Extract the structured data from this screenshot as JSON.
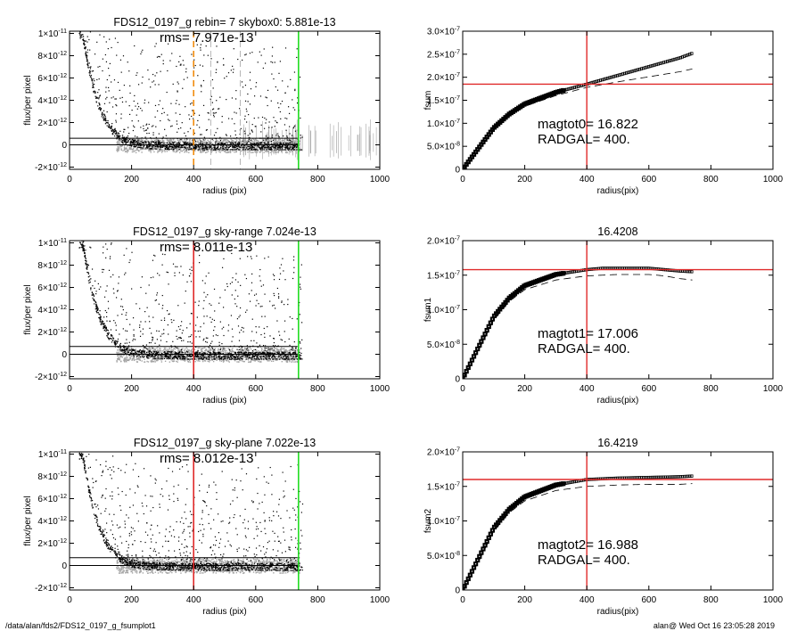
{
  "footer": {
    "left": "/data/alan/fds2/FDS12_0197_g_fsumplot1",
    "right": "alan@  Wed Oct 16 23:05:28 2019"
  },
  "colors": {
    "red": "#e02a2a",
    "green": "#22dd22",
    "orange": "#f08c10",
    "grey": "#a3a3a3"
  },
  "chart_data": [
    {
      "type": "scatter",
      "title": "FDS12_0197_g rebin= 7    skybox0:  5.881e-13",
      "annotation": "rms= 7.971e-13",
      "xlabel": "radius (pix)",
      "ylabel": "flux/per pixel",
      "xlim": [
        0,
        1000
      ],
      "ylim": [
        -2.2e-12,
        1.02e-11
      ],
      "xticks": [
        "0",
        "200",
        "400",
        "600",
        "800",
        "1000"
      ],
      "yticks": [
        "-2×10^-12",
        "0",
        "2×10^-12",
        "4×10^-12",
        "6×10^-12",
        "8×10^-12",
        "1×10^-11"
      ],
      "profile": {
        "x": [
          40,
          50,
          60,
          80,
          100,
          125,
          150,
          175,
          200,
          250,
          300,
          400,
          500,
          600,
          730
        ],
        "y": [
          1e-11,
          8.6e-12,
          7e-12,
          4.7e-12,
          3.1e-12,
          1.8e-12,
          1e-12,
          5.5e-13,
          3e-13,
          1e-13,
          5e-14,
          0,
          0,
          0,
          0
        ]
      },
      "hlines": [
        5.881e-13,
        0
      ],
      "vlines": [
        {
          "x": 400,
          "color": "orange",
          "dash": true
        },
        {
          "x": 455,
          "color": "grey",
          "dash": true
        },
        {
          "x": 550,
          "color": "grey",
          "dash": true
        },
        {
          "x": 738,
          "color": "green",
          "dash": false
        }
      ]
    },
    {
      "type": "line",
      "title": "",
      "annotation": [
        "magtot0=  16.822",
        "RADGAL=    400."
      ],
      "xlabel": "radius(pix)",
      "ylabel": "fsum",
      "xlim": [
        0,
        1000
      ],
      "ylim": [
        0,
        3e-07
      ],
      "xticks": [
        "0",
        "200",
        "400",
        "600",
        "800",
        "1000"
      ],
      "yticks": [
        "0",
        "5.0×10^-8",
        "1.0×10^-7",
        "1.5×10^-7",
        "2.0×10^-7",
        "2.5×10^-7",
        "3.0×10^-7"
      ],
      "series": [
        {
          "style": "symbols",
          "x": [
            0,
            50,
            100,
            150,
            200,
            300,
            400,
            500,
            600,
            700,
            740
          ],
          "y": [
            0,
            4.5e-08,
            9e-08,
            1.2e-07,
            1.42e-07,
            1.67e-07,
            1.85e-07,
            2.04e-07,
            2.23e-07,
            2.42e-07,
            2.52e-07
          ]
        },
        {
          "style": "dashed",
          "x": [
            0,
            50,
            100,
            150,
            200,
            300,
            400,
            500,
            600,
            700,
            740
          ],
          "y": [
            0,
            4e-08,
            8.5e-08,
            1.15e-07,
            1.37e-07,
            1.6e-07,
            1.78e-07,
            1.9e-07,
            2.01e-07,
            2.12e-07,
            2.18e-07
          ]
        }
      ],
      "crosshair": {
        "x": 400,
        "y": 1.85e-07
      }
    },
    {
      "type": "scatter",
      "title": "FDS12_0197_g sky-range  7.024e-13",
      "annotation": "rms= 8.011e-13",
      "xlabel": "radius (pix)",
      "ylabel": "flux/per pixel",
      "xlim": [
        0,
        1000
      ],
      "ylim": [
        -2.2e-12,
        1.02e-11
      ],
      "xticks": [
        "0",
        "200",
        "400",
        "600",
        "800",
        "1000"
      ],
      "yticks": [
        "-2×10^-12",
        "0",
        "2×10^-12",
        "4×10^-12",
        "6×10^-12",
        "8×10^-12",
        "1×10^-11"
      ],
      "profile": {
        "x": [
          40,
          50,
          60,
          80,
          100,
          125,
          150,
          175,
          200,
          250,
          300,
          400,
          500,
          600,
          730
        ],
        "y": [
          1e-11,
          8.6e-12,
          7e-12,
          4.7e-12,
          3.1e-12,
          1.8e-12,
          1e-12,
          5.5e-13,
          3e-13,
          1e-13,
          5e-14,
          0,
          0,
          0,
          0
        ]
      },
      "hlines": [
        7.024e-13,
        0
      ],
      "vlines": [
        {
          "x": 400,
          "color": "red",
          "dash": false
        },
        {
          "x": 738,
          "color": "green",
          "dash": false
        }
      ]
    },
    {
      "type": "line",
      "title": "16.4208",
      "annotation": [
        "magtot1=  17.006",
        "RADGAL=    400."
      ],
      "xlabel": "radius(pix)",
      "ylabel": "fsum1",
      "xlim": [
        0,
        1000
      ],
      "ylim": [
        0,
        2e-07
      ],
      "xticks": [
        "0",
        "200",
        "400",
        "600",
        "800",
        "1000"
      ],
      "yticks": [
        "0",
        "5.0×10^-8",
        "1.0×10^-7",
        "1.5×10^-7",
        "2.0×10^-7"
      ],
      "series": [
        {
          "style": "symbols",
          "x": [
            0,
            50,
            100,
            150,
            200,
            300,
            400,
            450,
            500,
            600,
            650,
            700,
            740
          ],
          "y": [
            0,
            4.5e-08,
            9e-08,
            1.17e-07,
            1.35e-07,
            1.51e-07,
            1.58e-07,
            1.6e-07,
            1.6e-07,
            1.6e-07,
            1.58e-07,
            1.56e-07,
            1.55e-07
          ]
        },
        {
          "style": "dashed",
          "x": [
            0,
            50,
            100,
            150,
            200,
            300,
            400,
            500,
            600,
            650,
            700,
            740
          ],
          "y": [
            0,
            4e-08,
            8.5e-08,
            1.12e-07,
            1.29e-07,
            1.43e-07,
            1.49e-07,
            1.51e-07,
            1.51e-07,
            1.49e-07,
            1.45e-07,
            1.43e-07
          ]
        }
      ],
      "crosshair": {
        "x": 400,
        "y": 1.58e-07
      }
    },
    {
      "type": "scatter",
      "title": "FDS12_0197_g sky-plane  7.022e-13",
      "annotation": "rms= 8.012e-13",
      "xlabel": "radius (pix)",
      "ylabel": "flux/per pixel",
      "xlim": [
        0,
        1000
      ],
      "ylim": [
        -2.2e-12,
        1.02e-11
      ],
      "xticks": [
        "0",
        "200",
        "400",
        "600",
        "800",
        "1000"
      ],
      "yticks": [
        "-2×10^-12",
        "0",
        "2×10^-12",
        "4×10^-12",
        "6×10^-12",
        "8×10^-12",
        "1×10^-11"
      ],
      "profile": {
        "x": [
          40,
          50,
          60,
          80,
          100,
          125,
          150,
          175,
          200,
          250,
          300,
          400,
          500,
          600,
          730
        ],
        "y": [
          1e-11,
          8.6e-12,
          7e-12,
          4.7e-12,
          3.1e-12,
          1.8e-12,
          1e-12,
          5.5e-13,
          3e-13,
          1e-13,
          5e-14,
          0,
          0,
          0,
          0
        ]
      },
      "hlines": [
        7.022e-13,
        0
      ],
      "vlines": [
        {
          "x": 400,
          "color": "red",
          "dash": false
        },
        {
          "x": 738,
          "color": "green",
          "dash": false
        }
      ]
    },
    {
      "type": "line",
      "title": "16.4219",
      "annotation": [
        "magtot2=  16.988",
        "RADGAL=    400."
      ],
      "xlabel": "radius(pix)",
      "ylabel": "fsum2",
      "xlim": [
        0,
        1000
      ],
      "ylim": [
        0,
        2e-07
      ],
      "xticks": [
        "0",
        "200",
        "400",
        "600",
        "800",
        "1000"
      ],
      "yticks": [
        "0",
        "5.0×10^-8",
        "1.0×10^-7",
        "1.5×10^-7",
        "2.0×10^-7"
      ],
      "series": [
        {
          "style": "symbols",
          "x": [
            0,
            50,
            100,
            150,
            200,
            300,
            400,
            500,
            600,
            700,
            740
          ],
          "y": [
            0,
            4.5e-08,
            9e-08,
            1.17e-07,
            1.35e-07,
            1.52e-07,
            1.6e-07,
            1.62e-07,
            1.63e-07,
            1.64e-07,
            1.65e-07
          ]
        },
        {
          "style": "dashed",
          "x": [
            0,
            50,
            100,
            150,
            200,
            300,
            400,
            500,
            600,
            700,
            740
          ],
          "y": [
            0,
            4e-08,
            8.5e-08,
            1.12e-07,
            1.29e-07,
            1.44e-07,
            1.5e-07,
            1.52e-07,
            1.53e-07,
            1.53e-07,
            1.54e-07
          ]
        }
      ],
      "crosshair": {
        "x": 400,
        "y": 1.6e-07
      }
    }
  ]
}
